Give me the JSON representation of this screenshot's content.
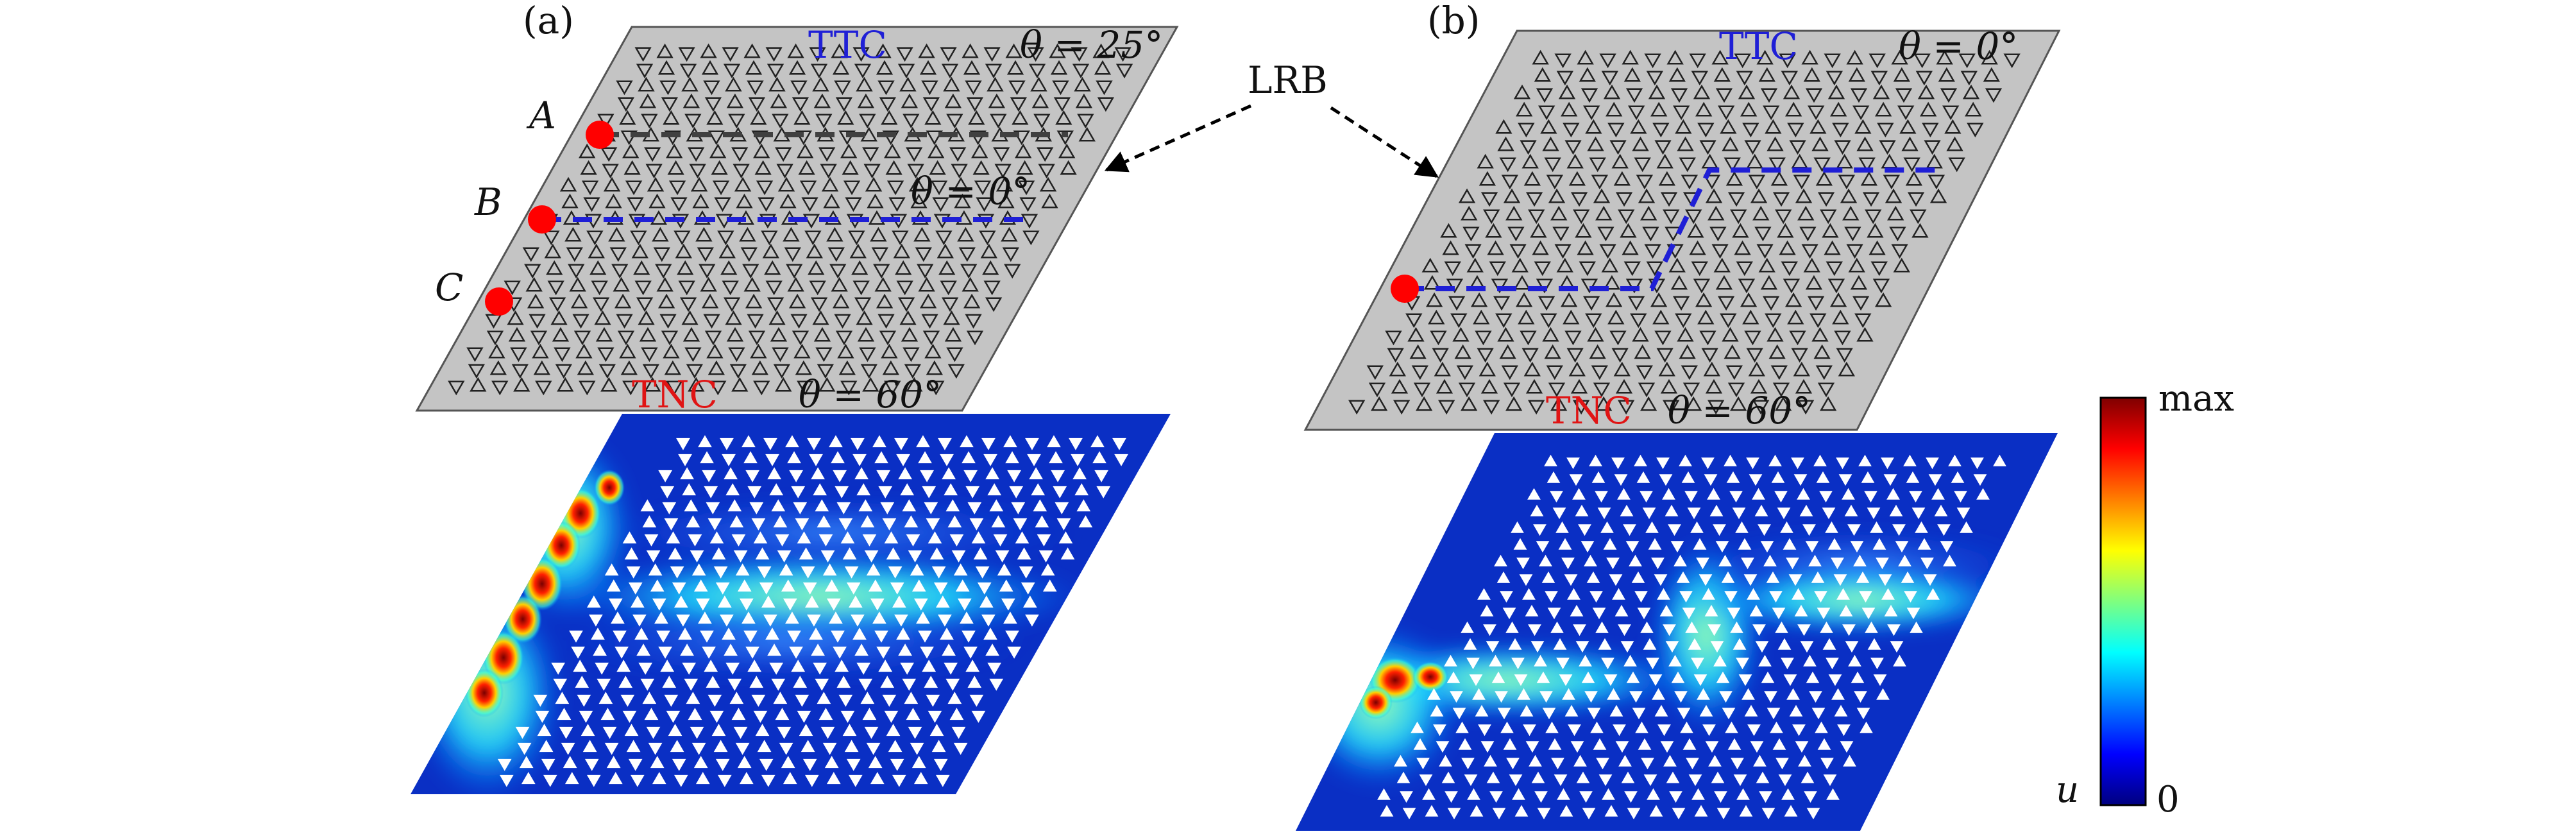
{
  "panel_a": {
    "label": "(a)",
    "top_material": "TTC",
    "top_angle": "θ = 25°",
    "inner_angle": "θ = 0°",
    "bottom_material": "TNC",
    "bottom_angle": "θ = 60°",
    "points": [
      "A",
      "B",
      "C"
    ]
  },
  "panel_b": {
    "label": "(b)",
    "top_material": "TTC",
    "top_angle": "θ = 0°",
    "bottom_material": "TNC",
    "bottom_angle": "θ = 60°"
  },
  "callout": "LRB",
  "colorbar": {
    "max_label": "max",
    "min_label": "0",
    "variable": "u",
    "colors": [
      "#00007f",
      "#0000ff",
      "#007fff",
      "#00ffff",
      "#7fff7f",
      "#ffff00",
      "#ff7f00",
      "#ff0000",
      "#7f0000"
    ]
  },
  "colors": {
    "plate": "#c4c4c4",
    "field_bg": "#0a2fc4",
    "marker": "#ff0000",
    "path_blue": "#1f1fd6",
    "path_gray": "#404040"
  }
}
